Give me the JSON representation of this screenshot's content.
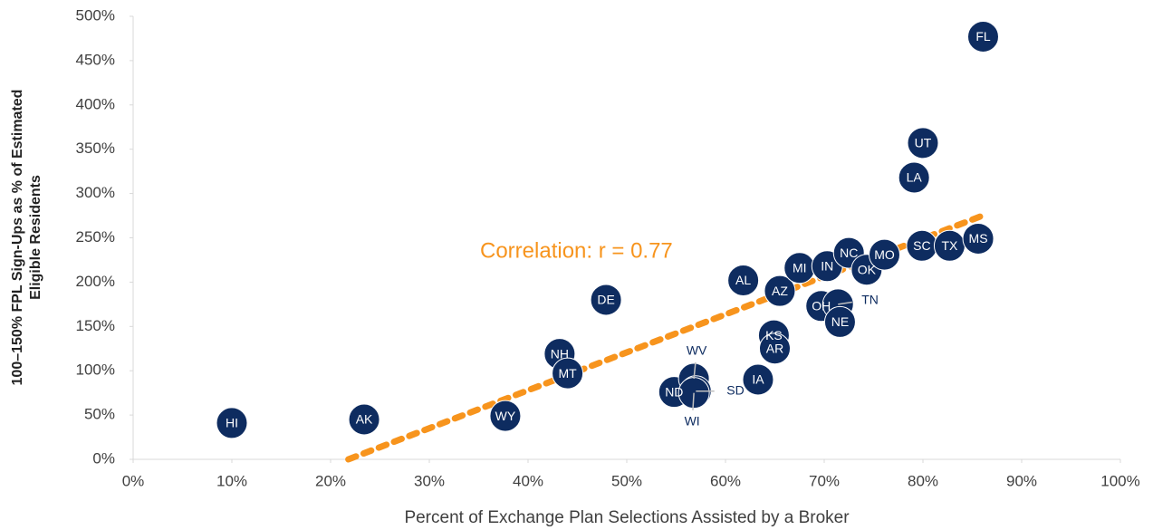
{
  "chart_data": {
    "type": "scatter",
    "xlabel": "Percent of Exchange Plan Selections Assisted by a Broker",
    "ylabel_lines": [
      "100–150% FPL Sign-Ups as % of Estimated",
      "Eligible Residents"
    ],
    "annotation": "Correlation: r = 0.77",
    "color": "#0e2c60",
    "trend_color": "#f7941d",
    "labels": [
      "HI",
      "AK",
      "WY",
      "NH",
      "MT",
      "DE",
      "ND",
      "WV",
      "SD",
      "WI",
      "AL",
      "IA",
      "KS",
      "AR",
      "AZ",
      "MI",
      "OH",
      "IN",
      "TN",
      "NE",
      "NC",
      "OK",
      "MO",
      "LA",
      "SC",
      "UT",
      "TX",
      "MS",
      "FL"
    ],
    "x": [
      10,
      23.4,
      37.7,
      43.2,
      44,
      47.9,
      54.8,
      56.8,
      57,
      56.8,
      61.8,
      63.3,
      64.9,
      65,
      65.5,
      67.5,
      69.7,
      70.3,
      71.4,
      71.6,
      72.5,
      74.3,
      76.1,
      79.1,
      79.9,
      80,
      82.7,
      85.6,
      86.1
    ],
    "values": [
      41,
      45,
      49,
      119,
      97,
      180,
      76,
      91,
      77,
      75,
      202,
      90,
      140,
      125,
      190,
      216,
      173,
      218,
      175,
      155,
      233,
      214,
      231,
      318,
      241,
      357,
      241,
      249,
      477
    ],
    "trendline": {
      "x": [
        21.8,
        85.8
      ],
      "y": [
        0,
        274
      ]
    },
    "xlim": [
      0,
      100
    ],
    "ylim": [
      0,
      500
    ],
    "xticks": [
      {
        "value": 0,
        "label": "0%"
      },
      {
        "value": 10,
        "label": "10%"
      },
      {
        "value": 20,
        "label": "20%"
      },
      {
        "value": 30,
        "label": "30%"
      },
      {
        "value": 40,
        "label": "40%"
      },
      {
        "value": 50,
        "label": "50%"
      },
      {
        "value": 60,
        "label": "60%"
      },
      {
        "value": 70,
        "label": "70%"
      },
      {
        "value": 80,
        "label": "80%"
      },
      {
        "value": 90,
        "label": "90%"
      },
      {
        "value": 100,
        "label": "100%"
      }
    ],
    "yticks": [
      {
        "value": 0,
        "label": "0%"
      },
      {
        "value": 50,
        "label": "50%"
      },
      {
        "value": 100,
        "label": "100%"
      },
      {
        "value": 150,
        "label": "150%"
      },
      {
        "value": 200,
        "label": "200%"
      },
      {
        "value": 250,
        "label": "250%"
      },
      {
        "value": 300,
        "label": "300%"
      },
      {
        "value": 350,
        "label": "350%"
      },
      {
        "value": 400,
        "label": "400%"
      },
      {
        "value": 450,
        "label": "450%"
      },
      {
        "value": 500,
        "label": "500%"
      }
    ]
  }
}
